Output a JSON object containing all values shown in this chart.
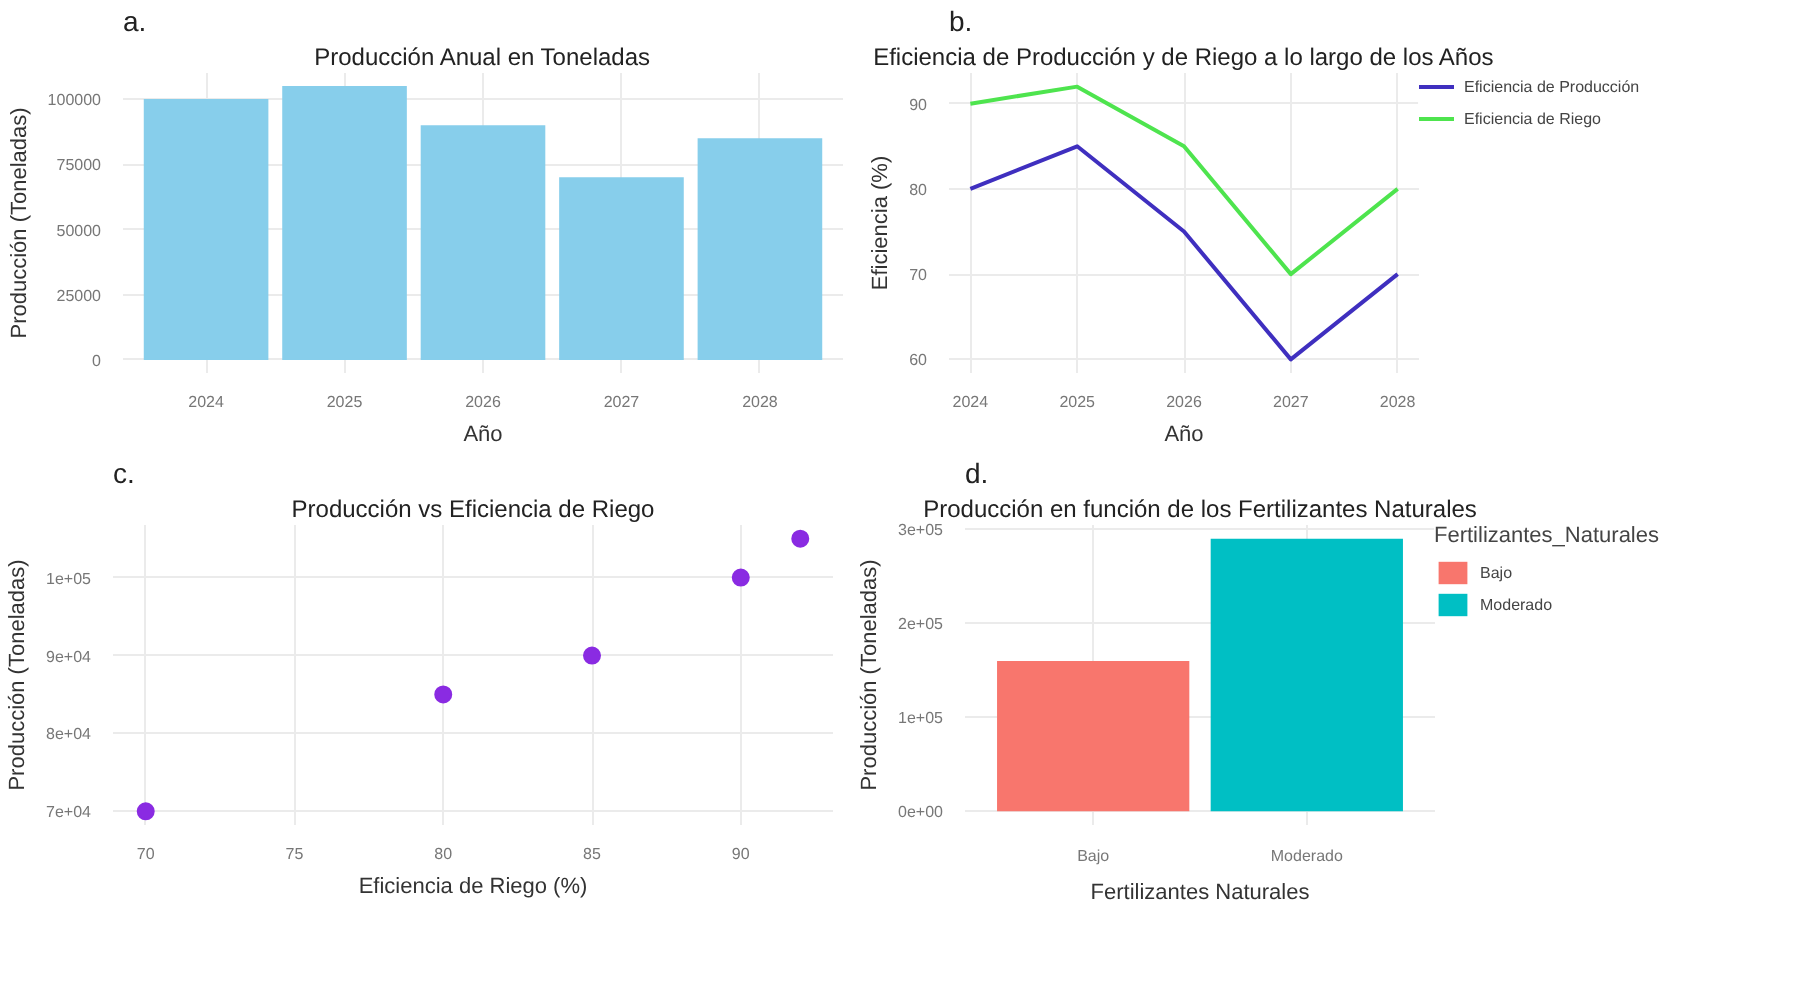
{
  "chart_data": [
    {
      "type": "bar",
      "title": "Producción Anual en Toneladas",
      "xlabel": "Año",
      "ylabel": "Producción (Toneladas)",
      "annotations": [
        "a."
      ],
      "categories": [
        "2024",
        "2025",
        "2026",
        "2027",
        "2028"
      ],
      "values": [
        100000,
        105000,
        90000,
        70000,
        85000
      ],
      "color": "#87ceeb",
      "ylim": [
        -5000,
        110000
      ],
      "yticks": [
        0,
        25000,
        50000,
        75000,
        100000
      ],
      "grid": true
    },
    {
      "type": "line",
      "title": "Eficiencia de Producción y de Riego a lo largo de los Años",
      "xlabel": "Año",
      "ylabel": "Eficiencia (%)",
      "annotations": [
        "b."
      ],
      "x": [
        2024,
        2025,
        2026,
        2027,
        2028
      ],
      "series": [
        {
          "name": "Eficiencia de Producción",
          "color": "#3f2fbf",
          "values": [
            80,
            85,
            75,
            60,
            70
          ]
        },
        {
          "name": "Eficiencia de Riego",
          "color": "#4ee44e",
          "values": [
            90,
            92,
            85,
            70,
            80
          ]
        }
      ],
      "xlim": [
        2023.8,
        2028.2
      ],
      "xticks": [
        2024,
        2025,
        2026,
        2027,
        2028
      ],
      "ylim": [
        58.4,
        93.6
      ],
      "yticks": [
        60,
        70,
        80,
        90
      ],
      "grid": true,
      "legend": "right",
      "line_style": "solid"
    },
    {
      "type": "scatter",
      "title": "Producción vs Eficiencia de Riego",
      "xlabel": "Eficiencia de Riego (%)",
      "ylabel": "Producción (Toneladas)",
      "annotations": [
        "c."
      ],
      "x": [
        70,
        80,
        85,
        90,
        92
      ],
      "values": [
        70000,
        85000,
        90000,
        100000,
        105000
      ],
      "color": "#8a2be2",
      "marker": "circle",
      "xlim": [
        68.9,
        93.1
      ],
      "xticks": [
        70,
        75,
        80,
        85,
        90
      ],
      "ylim": [
        68250,
        106750
      ],
      "yticks": [
        {
          "value": 70000,
          "label": "7e+04"
        },
        {
          "value": 80000,
          "label": "8e+04"
        },
        {
          "value": 90000,
          "label": "9e+04"
        },
        {
          "value": 100000,
          "label": "1e+05"
        }
      ],
      "grid": true
    },
    {
      "type": "bar",
      "title": "Producción en función de los Fertilizantes Naturales",
      "xlabel": "Fertilizantes Naturales",
      "ylabel": "Producción (Toneladas)",
      "annotations": [
        "d."
      ],
      "legend_title": "Fertilizantes_Naturales",
      "legend": "right",
      "categories": [
        "Bajo",
        "Moderado"
      ],
      "stacked": true,
      "series": [
        {
          "name": "Bajo",
          "color": "#f8766d",
          "values": [
            160000,
            null
          ]
        },
        {
          "name": "Moderado",
          "color": "#00bfc4",
          "values": [
            null,
            290000
          ]
        }
      ],
      "ylim": [
        -14500,
        304500
      ],
      "yticks": [
        {
          "value": 0,
          "label": "0e+00"
        },
        {
          "value": 100000,
          "label": "1e+05"
        },
        {
          "value": 200000,
          "label": "2e+05"
        },
        {
          "value": 300000,
          "label": "3e+05"
        }
      ],
      "grid": true
    }
  ]
}
